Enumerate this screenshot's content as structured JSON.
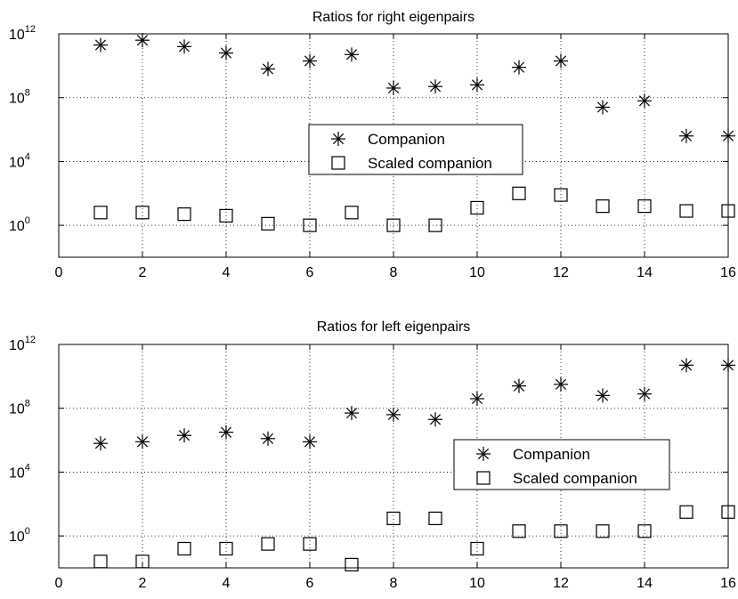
{
  "chart_data": [
    {
      "type": "scatter",
      "title": "Ratios for right eigenpairs",
      "xlabel": "",
      "ylabel": "",
      "xlim": [
        0,
        16
      ],
      "ylim_log10": [
        -2,
        12
      ],
      "yscale": "log",
      "grid": true,
      "xticks": [
        "0",
        "2",
        "4",
        "6",
        "8",
        "10",
        "12",
        "14",
        "16"
      ],
      "yticks": [
        {
          "base": "10",
          "exp": "0"
        },
        {
          "base": "10",
          "exp": "4"
        },
        {
          "base": "10",
          "exp": "8"
        },
        {
          "base": "10",
          "exp": "12"
        }
      ],
      "legend_position": "center-right",
      "series": [
        {
          "name": "Companion",
          "marker": "asterisk",
          "x": [
            1,
            2,
            3,
            4,
            5,
            6,
            7,
            8,
            9,
            10,
            11,
            12,
            13,
            14,
            15,
            16
          ],
          "log10_y": [
            11.3,
            11.6,
            11.2,
            10.8,
            9.8,
            10.3,
            10.7,
            8.6,
            8.7,
            8.8,
            9.9,
            10.3,
            7.4,
            7.8,
            5.6,
            5.6
          ]
        },
        {
          "name": "Scaled companion",
          "marker": "square",
          "x": [
            1,
            2,
            3,
            4,
            5,
            6,
            7,
            8,
            9,
            10,
            11,
            12,
            13,
            14,
            15,
            16
          ],
          "log10_y": [
            0.8,
            0.8,
            0.7,
            0.6,
            0.1,
            0.0,
            0.8,
            0.0,
            0.0,
            1.1,
            2.0,
            1.9,
            1.2,
            1.2,
            0.9,
            0.9
          ]
        }
      ]
    },
    {
      "type": "scatter",
      "title": "Ratios for left eigenpairs",
      "xlabel": "",
      "ylabel": "",
      "xlim": [
        0,
        16
      ],
      "ylim_log10": [
        -2,
        12
      ],
      "yscale": "log",
      "grid": true,
      "xticks": [
        "0",
        "2",
        "4",
        "6",
        "8",
        "10",
        "12",
        "14",
        "16"
      ],
      "yticks": [
        {
          "base": "10",
          "exp": "0"
        },
        {
          "base": "10",
          "exp": "4"
        },
        {
          "base": "10",
          "exp": "8"
        },
        {
          "base": "10",
          "exp": "12"
        }
      ],
      "legend_position": "center-right",
      "series": [
        {
          "name": "Companion",
          "marker": "asterisk",
          "x": [
            1,
            2,
            3,
            4,
            5,
            6,
            7,
            8,
            9,
            10,
            11,
            12,
            13,
            14,
            15,
            16
          ],
          "log10_y": [
            5.8,
            5.9,
            6.3,
            6.5,
            6.1,
            5.9,
            7.7,
            7.6,
            7.3,
            8.6,
            9.4,
            9.5,
            8.8,
            8.9,
            10.7,
            10.7
          ]
        },
        {
          "name": "Scaled companion",
          "marker": "square",
          "x": [
            1,
            2,
            3,
            4,
            5,
            6,
            7,
            8,
            9,
            10,
            11,
            12,
            13,
            14,
            15,
            16
          ],
          "log10_y": [
            -1.6,
            -1.6,
            -0.8,
            -0.8,
            -0.5,
            -0.5,
            -1.8,
            1.1,
            1.1,
            -0.8,
            0.3,
            0.3,
            0.3,
            0.3,
            1.5,
            1.5
          ]
        }
      ]
    }
  ]
}
